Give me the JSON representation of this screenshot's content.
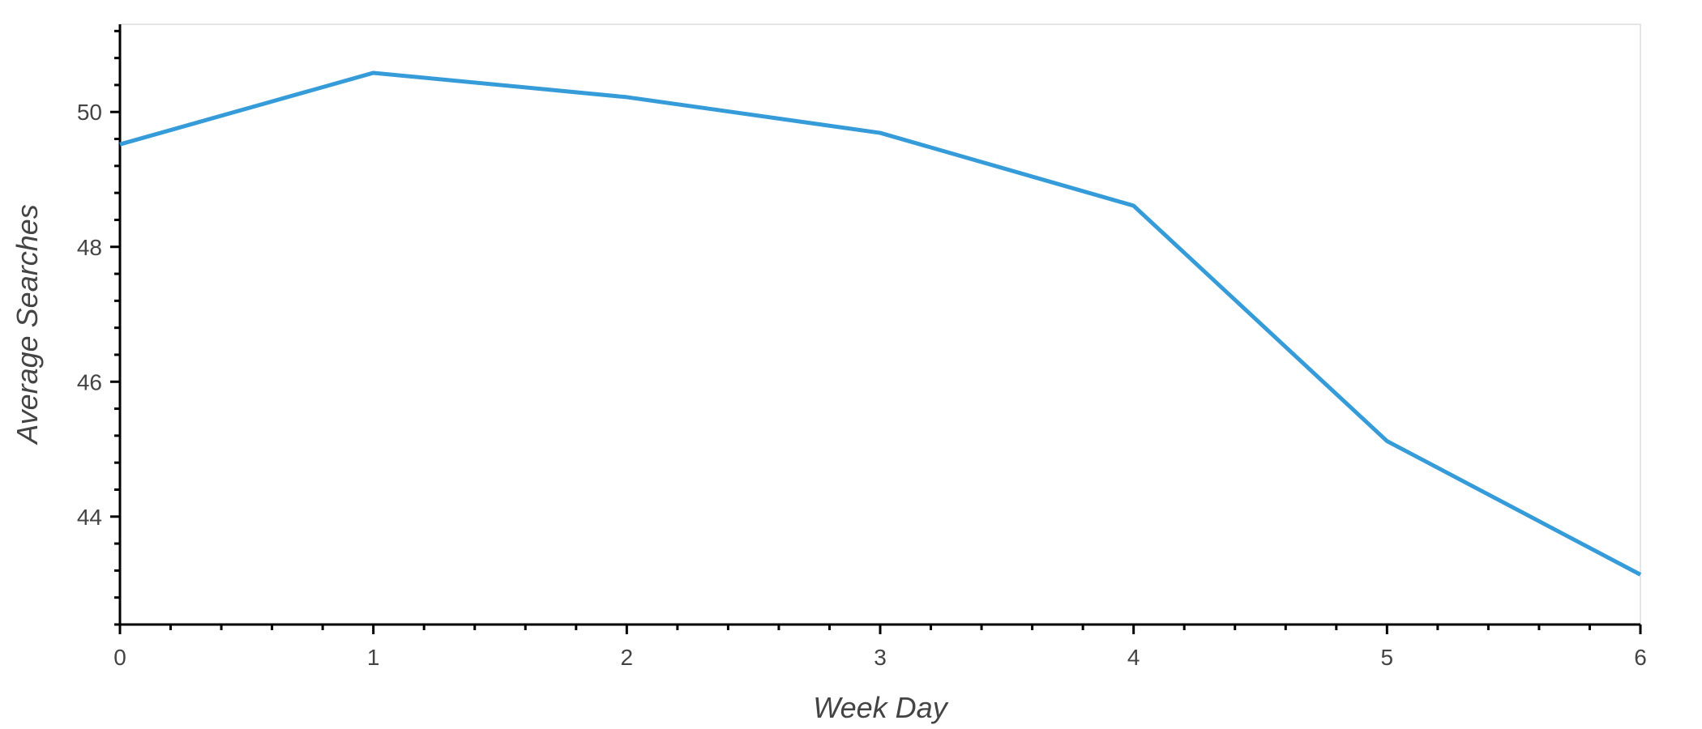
{
  "chart_data": {
    "type": "line",
    "xlabel": "Week Day",
    "ylabel": "Average Searches",
    "x": [
      0,
      1,
      2,
      3,
      4,
      5,
      6
    ],
    "xticks": [
      "0",
      "1",
      "2",
      "3",
      "4",
      "5",
      "6"
    ],
    "xlim": [
      0,
      6
    ],
    "yticks": [
      "44",
      "46",
      "48",
      "50"
    ],
    "ylim": [
      42.4,
      51.3
    ],
    "series": [
      {
        "values": [
          49.52,
          50.58,
          50.22,
          49.69,
          48.61,
          45.12,
          43.14
        ],
        "color": "#369cd9"
      }
    ],
    "grid": false,
    "legend": false
  }
}
